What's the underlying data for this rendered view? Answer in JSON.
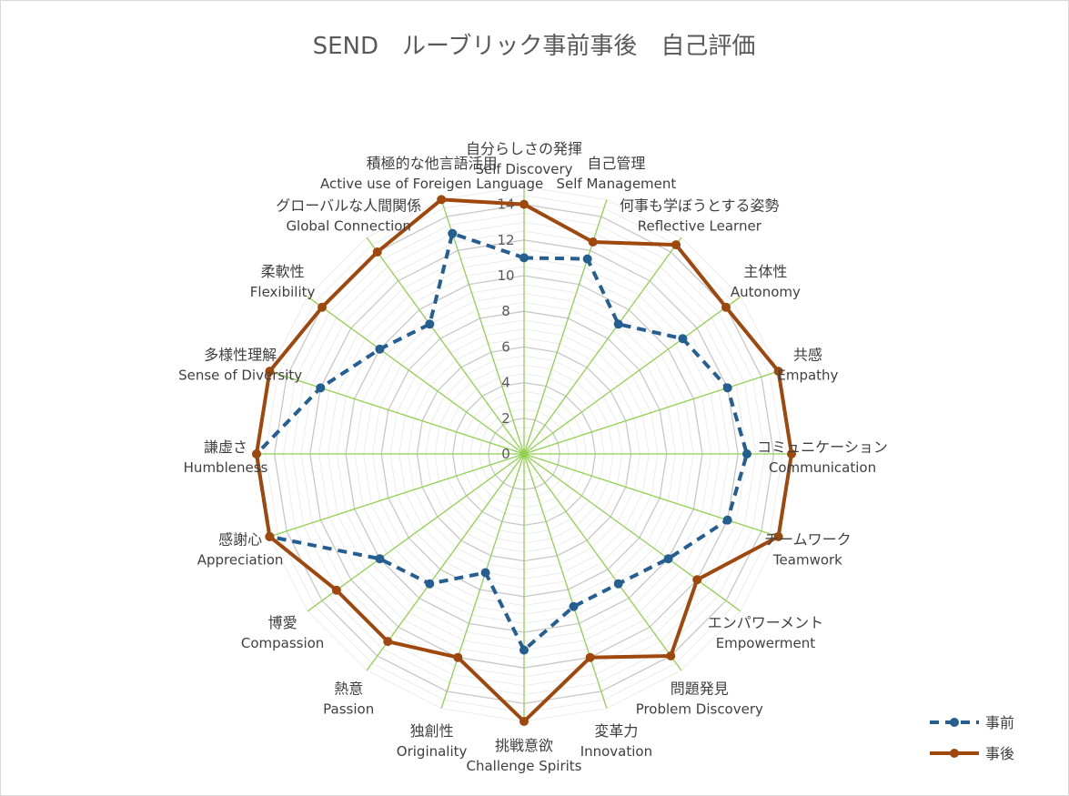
{
  "chart_data": {
    "type": "radar",
    "title": "SEND　ルーブリック事前事後　自己評価",
    "categories": [
      {
        "ja": "自分らしさの発揮",
        "en": "Self Discovery"
      },
      {
        "ja": "自己管理",
        "en": "Self Management"
      },
      {
        "ja": "何事も学ぼうとする姿勢",
        "en": "Reflective Learner"
      },
      {
        "ja": "主体性",
        "en": "Autonomy"
      },
      {
        "ja": "共感",
        "en": "Empathy"
      },
      {
        "ja": "コミュニケーション",
        "en": "Communication"
      },
      {
        "ja": "チームワーク",
        "en": "Teamwork"
      },
      {
        "ja": "エンパワーメント",
        "en": "Empowerment"
      },
      {
        "ja": "問題発見",
        "en": "Problem Discovery"
      },
      {
        "ja": "変革力",
        "en": "Innovation"
      },
      {
        "ja": "挑戦意欲",
        "en": "Challenge Spirits"
      },
      {
        "ja": "独創性",
        "en": "Originality"
      },
      {
        "ja": "熱意",
        "en": "Passion"
      },
      {
        "ja": "博愛",
        "en": "Compassion"
      },
      {
        "ja": "感謝心",
        "en": "Appreciation"
      },
      {
        "ja": "謙虚さ",
        "en": "Humbleness"
      },
      {
        "ja": "多様性理解",
        "en": "Sense of Diversity"
      },
      {
        "ja": "柔軟性",
        "en": "Flexibility"
      },
      {
        "ja": "グローバルな人間関係",
        "en": "Global Connection"
      },
      {
        "ja": "積極的な他言語活用",
        "en": "Active use of Foreigen Language"
      }
    ],
    "series": [
      {
        "name": "事前",
        "color": "#255e91",
        "dashed": true,
        "values": [
          11,
          11.5,
          9,
          11,
          12,
          12.5,
          12,
          10,
          9,
          9,
          11,
          7,
          9,
          10,
          15,
          15,
          12,
          10,
          9,
          13
        ]
      },
      {
        "name": "事後",
        "color": "#9e480e",
        "dashed": false,
        "values": [
          14,
          12.5,
          14.5,
          14,
          15,
          15,
          15,
          12,
          14,
          12,
          15,
          12,
          13,
          13,
          15,
          15,
          15,
          14,
          14,
          15
        ]
      }
    ],
    "ticks": [
      0,
      2,
      4,
      6,
      8,
      10,
      12,
      14
    ],
    "rmax": 15,
    "axis_color": "#92d050",
    "grid_color": "#d9d9d9",
    "legend_position": "bottom-right"
  }
}
